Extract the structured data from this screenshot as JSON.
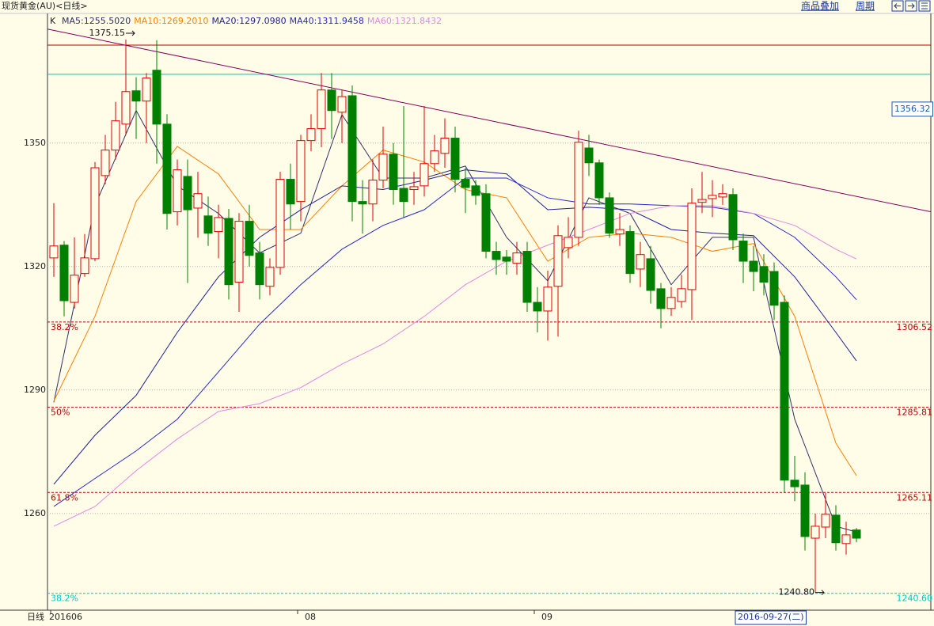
{
  "chart_data": {
    "type": "candlestick",
    "title": "现货黄金(AU)<日线>",
    "legend_prefix": "K",
    "toolbar": [
      "商品叠加",
      "周期"
    ],
    "xlabel": "日线",
    "categories": [
      "201606",
      null,
      null,
      null,
      null,
      null,
      null,
      null,
      null,
      null,
      null,
      null,
      null,
      null,
      null,
      null,
      null,
      null,
      null,
      null,
      null,
      null,
      null,
      null,
      "08",
      null,
      null,
      null,
      null,
      null,
      null,
      null,
      null,
      null,
      null,
      null,
      null,
      null,
      null,
      null,
      null,
      null,
      null,
      null,
      null,
      null,
      null,
      "09",
      null,
      null,
      null,
      null,
      null,
      null,
      null,
      null,
      null,
      null,
      null,
      null,
      null,
      null,
      null,
      null,
      null,
      null,
      "2016-09-27(二)",
      null,
      null,
      null,
      null,
      null,
      null,
      null,
      null,
      null,
      null,
      null,
      null
    ],
    "highlight_category": 66,
    "open": [
      1322.1,
      1325.2,
      1311.3,
      1318.3,
      1321.9,
      1342.1,
      1348.3,
      1354.6,
      1362.7,
      1360.2,
      1367.7,
      1354.6,
      1333.3,
      1341.9,
      1334.2,
      1332.3,
      1328.5,
      1331.7,
      1316.2,
      1331.0,
      1323.3,
      1315.2,
      1319.8,
      1341.2,
      1335.8,
      1350.6,
      1353.5,
      1362.9,
      1357.5,
      1361.5,
      1335.8,
      1335.2,
      1341.0,
      1347.3,
      1339.0,
      1338.7,
      1339.6,
      1345.0,
      1347.5,
      1351.2,
      1341.2,
      1339.6,
      1337.7,
      1323.7,
      1322.3,
      1320.8,
      1323.7,
      1311.3,
      1309.2,
      1315.2,
      1324.6,
      1327.1,
      1348.8,
      1345.2,
      1336.7,
      1327.9,
      1328.5,
      1319.4,
      1321.9,
      1314.6,
      1309.8,
      1311.5,
      1314.4,
      1335.6,
      1336.5,
      1336.9,
      1337.5,
      1326.2,
      1321.3,
      1320.0,
      1318.8,
      1311.3,
      1268.1,
      1266.9,
      1254.0,
      1256.7,
      1259.6,
      1252.7,
      1256.0
    ],
    "high": [
      1335.4,
      1326.2,
      1327.1,
      1327.9,
      1345.4,
      1352,
      1360,
      1375.15,
      1366,
      1367,
      1375,
      1357,
      1346,
      1346,
      1343,
      1337,
      1335,
      1334,
      1333,
      1335,
      1326,
      1322,
      1343,
      1345,
      1352,
      1357,
      1367,
      1367,
      1363,
      1364,
      1341,
      1346,
      1354,
      1350,
      1359,
      1343,
      1359,
      1352,
      1356,
      1354,
      1344,
      1341,
      1340,
      1326,
      1324,
      1326,
      1326,
      1315,
      1319,
      1330,
      1332,
      1353,
      1352,
      1346,
      1338,
      1333,
      1330,
      1326,
      1325,
      1316,
      1315,
      1318,
      1339,
      1343,
      1341,
      1340,
      1339,
      1328,
      1325,
      1323,
      1321,
      1313,
      1274,
      1270,
      1260,
      1265,
      1262,
      1258,
      1256.5
    ],
    "low": [
      1317.5,
      1307.9,
      1309.8,
      1317.5,
      1321.3,
      1340,
      1346,
      1352,
      1351,
      1350,
      1345,
      1329,
      1330,
      1316,
      1327,
      1325,
      1322,
      1312,
      1309,
      1320,
      1312,
      1313,
      1318,
      1329,
      1331,
      1348,
      1349,
      1351,
      1350,
      1331,
      1328,
      1331,
      1339,
      1335,
      1332,
      1335,
      1337,
      1343,
      1344,
      1338,
      1333,
      1335,
      1322,
      1318,
      1318,
      1318,
      1309,
      1304,
      1302,
      1303,
      1322,
      1325,
      1342,
      1335,
      1327,
      1325,
      1316,
      1315,
      1311,
      1305,
      1308,
      1310,
      1307,
      1333,
      1332,
      1335,
      1324,
      1316,
      1314,
      1313,
      1307,
      1265,
      1263,
      1251,
      1240.8,
      1254,
      1251,
      1250,
      1253
    ],
    "close": [
      1325.0,
      1311.7,
      1317.9,
      1322.1,
      1344.0,
      1348.3,
      1355.4,
      1362.5,
      1360.2,
      1365.8,
      1354.6,
      1332.9,
      1343.5,
      1333.8,
      1337.7,
      1328.1,
      1331.9,
      1315.6,
      1331.0,
      1322.7,
      1315.6,
      1319.8,
      1341.2,
      1335.2,
      1350.6,
      1353.5,
      1362.9,
      1357.9,
      1361.3,
      1335.8,
      1335.2,
      1341.0,
      1347.3,
      1338.7,
      1335.8,
      1339.4,
      1345.0,
      1348.1,
      1351.2,
      1341.2,
      1339.2,
      1337.3,
      1323.7,
      1321.7,
      1321.3,
      1323.3,
      1311.3,
      1309.2,
      1315.0,
      1327.5,
      1327.1,
      1350.2,
      1345.2,
      1336.7,
      1328.1,
      1329.0,
      1318.3,
      1322.9,
      1314.2,
      1309.8,
      1312.5,
      1314.6,
      1335.4,
      1336.3,
      1337.3,
      1337.7,
      1326.5,
      1321.3,
      1318.8,
      1316.2,
      1310.6,
      1268.1,
      1266.5,
      1254.4,
      1256.9,
      1259.8,
      1252.9,
      1254.8,
      1254.0
    ],
    "up_color": "#e00000",
    "down_color": "#008000",
    "series": [
      {
        "name": "MA5:1255.5020",
        "color": "#30306a",
        "x": [
          0,
          4,
          8,
          12,
          16,
          20,
          24,
          28,
          32,
          36,
          40,
          44,
          48,
          52,
          56,
          60,
          64,
          68,
          72,
          76,
          78
        ],
        "values": [
          1287.0,
          1334.8,
          1357.9,
          1339.6,
          1332.9,
          1323.3,
          1328.1,
          1356.9,
          1341.5,
          1341.5,
          1344.4,
          1327.1,
          1316.5,
          1336.7,
          1332.9,
          1315.6,
          1327.1,
          1327.1,
          1282.9,
          1256.9,
          1255.502
        ]
      },
      {
        "name": "MA10:1269.2010",
        "color": "#ff8000",
        "x": [
          0,
          4,
          8,
          12,
          16,
          20,
          24,
          28,
          32,
          36,
          40,
          44,
          48,
          52,
          56,
          60,
          64,
          68,
          72,
          76,
          78
        ],
        "values": [
          1287.3,
          1307.9,
          1335.8,
          1349.2,
          1342.5,
          1329.0,
          1329.0,
          1339.6,
          1348.3,
          1345.4,
          1338.7,
          1336.7,
          1321.3,
          1327.1,
          1328.1,
          1327.1,
          1323.7,
          1325.6,
          1307.9,
          1277.1,
          1269.201
        ]
      },
      {
        "name": "MA20:1297.0980",
        "color": "#1e1e9a",
        "x": [
          0,
          4,
          8,
          12,
          16,
          20,
          24,
          28,
          32,
          36,
          40,
          44,
          48,
          52,
          56,
          60,
          64,
          68,
          72,
          76,
          78
        ],
        "values": [
          1267.1,
          1279.0,
          1288.7,
          1304.0,
          1317.5,
          1327.1,
          1333.8,
          1339.6,
          1338.7,
          1341.0,
          1343.5,
          1342.5,
          1333.8,
          1334.4,
          1333.8,
          1329.0,
          1328.1,
          1327.5,
          1317.5,
          1304.0,
          1297.098
        ]
      },
      {
        "name": "MA40:1311.9458",
        "color": "#2828c8",
        "x": [
          0,
          4,
          8,
          12,
          16,
          20,
          24,
          28,
          32,
          36,
          40,
          44,
          48,
          52,
          56,
          60,
          64,
          68,
          72,
          76,
          78
        ],
        "values": [
          1261.7,
          1268.5,
          1275.2,
          1282.9,
          1294.4,
          1306.0,
          1315.6,
          1324.2,
          1330.0,
          1333.8,
          1341.5,
          1341.5,
          1336.7,
          1335.2,
          1335.2,
          1334.8,
          1334.4,
          1332.9,
          1327.1,
          1317.5,
          1311.9458
        ]
      },
      {
        "name": "MA60:1321.8432",
        "color": "#e088e8",
        "x": [
          0,
          4,
          8,
          12,
          16,
          20,
          24,
          28,
          32,
          36,
          40,
          44,
          48,
          52,
          56,
          60,
          64,
          68,
          72,
          76,
          78
        ],
        "values": [
          1256.9,
          1261.7,
          1270.4,
          1278.1,
          1284.8,
          1286.7,
          1290.6,
          1296.3,
          1301.2,
          1307.9,
          1315.6,
          1321.3,
          1325.2,
          1329.0,
          1332.9,
          1334.8,
          1334.8,
          1332.9,
          1330.0,
          1324.2,
          1321.8432
        ]
      }
    ],
    "trendline": {
      "color": "#800060",
      "x": [
        -0.615,
        85.23
      ],
      "values": [
        1377.7,
        1333.3
      ]
    },
    "hlines": [
      {
        "value": 1373.8,
        "color": "#c00000"
      },
      {
        "value": 1366.7,
        "color": "#00c0c0"
      }
    ],
    "levels": [
      {
        "value": 1306.52,
        "label": "38.2%",
        "color": "#c00000"
      },
      {
        "value": 1285.81,
        "label": "50%",
        "color": "#c00000"
      },
      {
        "value": 1265.11,
        "label": "61.8%",
        "color": "#c00000"
      },
      {
        "value": 1240.6,
        "value_label": "1240.60",
        "label": "38.2%",
        "color": "#00c8c8"
      }
    ],
    "price_marker": 1356.32,
    "annotations": [
      {
        "x": 8,
        "value": 1375.15
      },
      {
        "x": 75,
        "value": 1240.8,
        "label": "1240.80"
      }
    ],
    "xlim": [
      -0.615,
      85.23
    ],
    "ylim": [
      1236.7,
      1381.3
    ],
    "yticks": [
      1260,
      1290,
      1320,
      1350
    ],
    "grid": true
  }
}
